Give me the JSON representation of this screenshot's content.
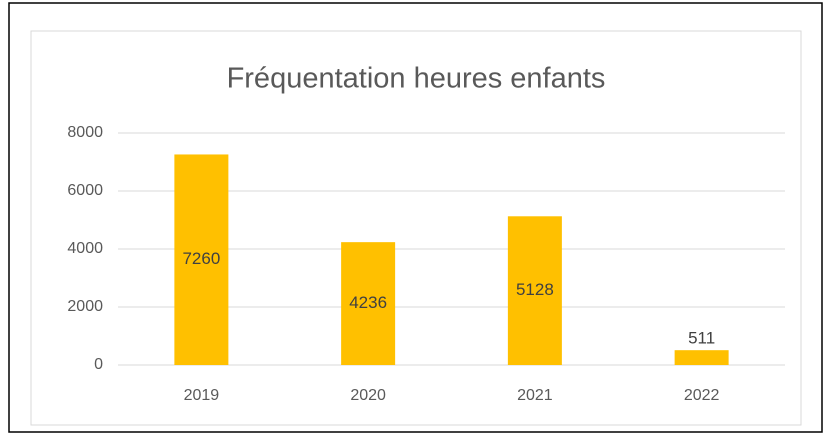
{
  "chart_data": {
    "type": "bar",
    "title": "Fréquentation heures enfants",
    "categories": [
      "2019",
      "2020",
      "2021",
      "2022"
    ],
    "values": [
      7260,
      4236,
      5128,
      511
    ],
    "color": "#ffc000",
    "ylim": [
      0,
      8000
    ],
    "yticks": [
      0,
      2000,
      4000,
      6000,
      8000
    ],
    "grid": true
  }
}
